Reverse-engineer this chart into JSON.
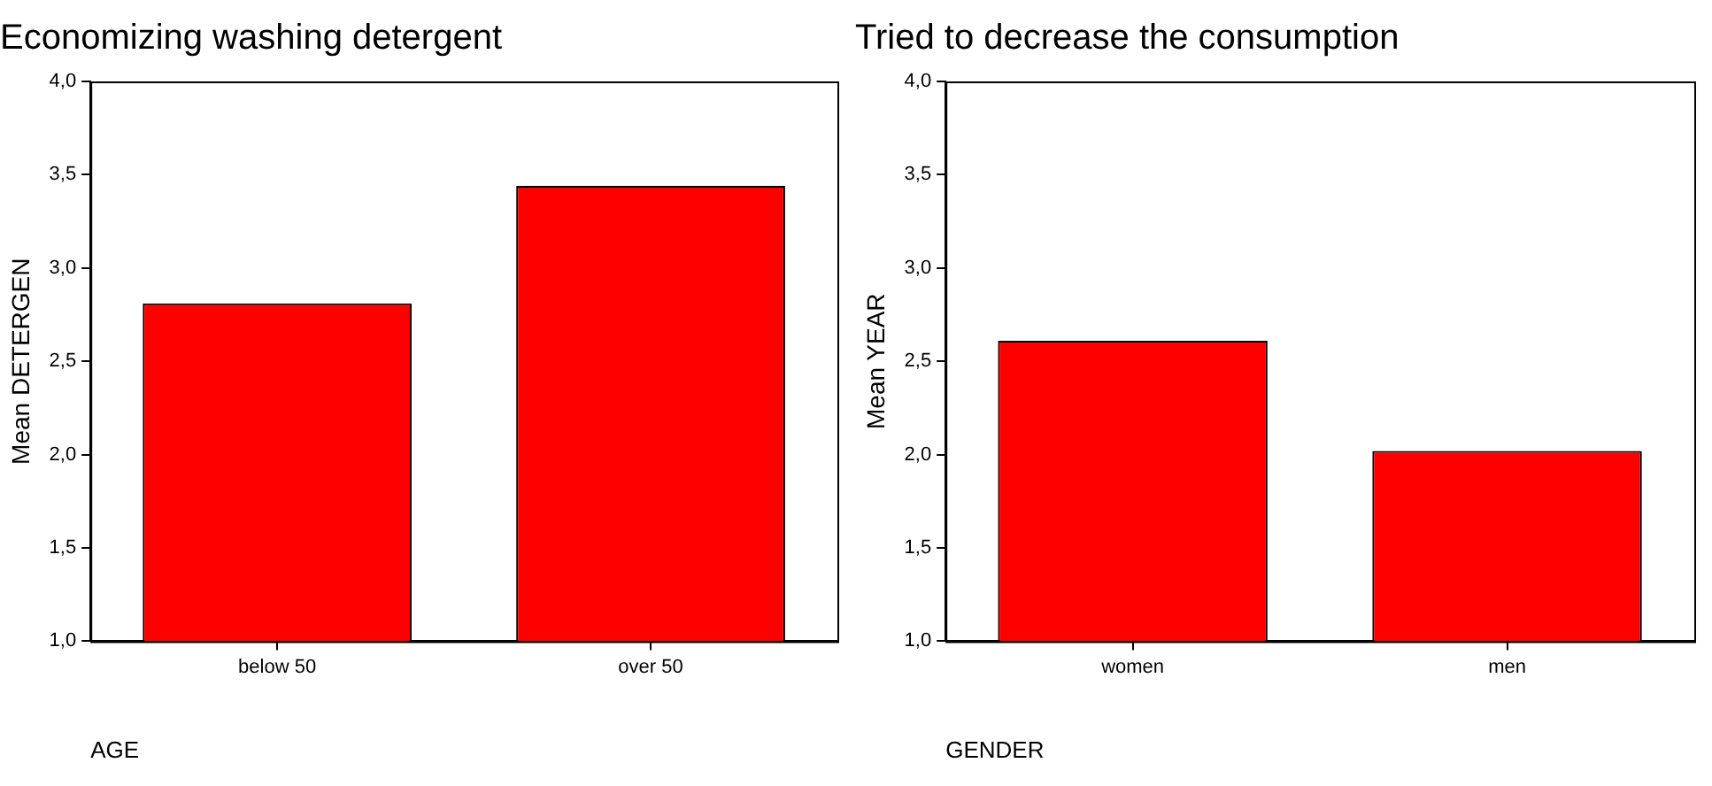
{
  "chart_data": [
    {
      "type": "bar",
      "title": "Economizing washing detergent",
      "xlabel": "AGE",
      "ylabel": "Mean DETERGEN",
      "categories": [
        "below 50",
        "over 50"
      ],
      "values": [
        2.81,
        3.44
      ],
      "color": "#ff0000",
      "ylim": [
        1,
        4
      ],
      "yticks": [
        {
          "value": 1,
          "label": "1,0"
        },
        {
          "value": 1.5,
          "label": "1,5"
        },
        {
          "value": 2,
          "label": "2,0"
        },
        {
          "value": 2.5,
          "label": "2,5"
        },
        {
          "value": 3,
          "label": "3,0"
        },
        {
          "value": 3.5,
          "label": "3,5"
        },
        {
          "value": 4,
          "label": "4,0"
        }
      ],
      "grid": false,
      "legend": false
    },
    {
      "type": "bar",
      "title": "Tried to decrease the consumption",
      "xlabel": "GENDER",
      "ylabel": "Mean YEAR",
      "categories": [
        "women",
        "men"
      ],
      "values": [
        2.61,
        2.02
      ],
      "color": "#ff0000",
      "ylim": [
        1,
        4
      ],
      "yticks": [
        {
          "value": 1,
          "label": "1,0"
        },
        {
          "value": 1.5,
          "label": "1,5"
        },
        {
          "value": 2,
          "label": "2,0"
        },
        {
          "value": 2.5,
          "label": "2,5"
        },
        {
          "value": 3,
          "label": "3,0"
        },
        {
          "value": 3.5,
          "label": "3,5"
        },
        {
          "value": 4,
          "label": "4,0"
        }
      ],
      "grid": false,
      "legend": false
    }
  ]
}
